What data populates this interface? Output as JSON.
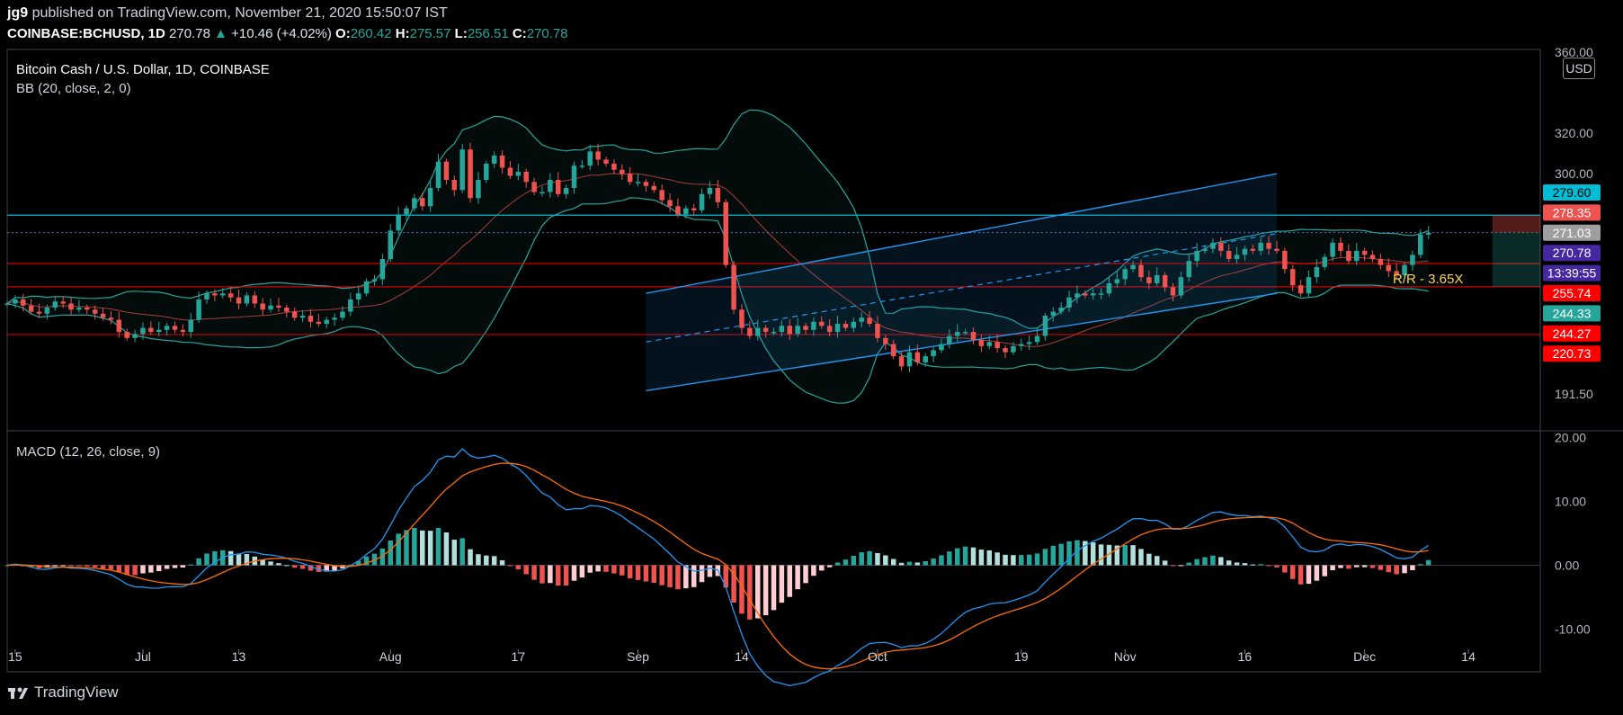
{
  "header": {
    "user": "jg9",
    "published": "published on TradingView.com, November 21, 2020 15:50:07 IST",
    "symbol": "COINBASE:BCHUSD, 1D",
    "last": "270.78",
    "change": "+10.46 (+4.02%)",
    "o_label": "O:",
    "o": "260.42",
    "h_label": "H:",
    "h": "275.57",
    "l_label": "L:",
    "l": "256.51",
    "c_label": "C:",
    "c": "270.78"
  },
  "legend": {
    "title": "Bitcoin Cash / U.S. Dollar, 1D, COINBASE",
    "bb": "BB (20, close, 2, 0)",
    "macd": "MACD (12, 26, close, 9)",
    "rr": "R/R - 3.65X",
    "currency": "USD"
  },
  "footer": {
    "brand": "TradingView"
  },
  "colors": {
    "up": "#26a69a",
    "down": "#ef5350",
    "bb": "#26a69a",
    "basis": "#ef5350",
    "channel": "#2196f3",
    "macd": "#2196f3",
    "signal": "#ff6d00",
    "resistance": "#00bcd4",
    "support": "#ff0000"
  },
  "chart_data": [
    {
      "type": "candlestick",
      "y_ticks": [
        "360.00",
        "320.00",
        "300.00",
        "191.50"
      ],
      "ylim": [
        175,
        360
      ],
      "x_ticks": [
        {
          "label": "15",
          "date": "2020-06-15"
        },
        {
          "label": "Jul",
          "date": "2020-07-01"
        },
        {
          "label": "13",
          "date": "2020-07-13"
        },
        {
          "label": "Aug",
          "date": "2020-08-01"
        },
        {
          "label": "17",
          "date": "2020-08-17"
        },
        {
          "label": "Sep",
          "date": "2020-09-01"
        },
        {
          "label": "14",
          "date": "2020-09-14"
        },
        {
          "label": "Oct",
          "date": "2020-10-01"
        },
        {
          "label": "19",
          "date": "2020-10-19"
        },
        {
          "label": "Nov",
          "date": "2020-11-01"
        },
        {
          "label": "16",
          "date": "2020-11-16"
        },
        {
          "label": "Dec",
          "date": "2020-12-01"
        },
        {
          "label": "14",
          "date": "2020-12-14"
        }
      ],
      "x_range": [
        "2020-06-14",
        "2020-12-23"
      ],
      "ohlc_start": "2020-06-14",
      "close": [
        236,
        238,
        235,
        232,
        231,
        234,
        237,
        236,
        233,
        234,
        233,
        231,
        229,
        228,
        222,
        219,
        221,
        224,
        222,
        223,
        225,
        223,
        222,
        228,
        238,
        241,
        240,
        241,
        239,
        236,
        240,
        236,
        233,
        235,
        234,
        232,
        229,
        230,
        227,
        226,
        228,
        229,
        232,
        238,
        241,
        247,
        248,
        258,
        272,
        280,
        283,
        288,
        284,
        293,
        306,
        297,
        292,
        312,
        288,
        297,
        305,
        309,
        303,
        299,
        301,
        296,
        291,
        291,
        297,
        290,
        293,
        304,
        304,
        311,
        307,
        305,
        302,
        300,
        296,
        296,
        294,
        292,
        287,
        284,
        280,
        283,
        282,
        290,
        293,
        286,
        255,
        233,
        224,
        220,
        224,
        222,
        222,
        225,
        221,
        225,
        223,
        227,
        225,
        222,
        226,
        224,
        227,
        229,
        226,
        219,
        216,
        210,
        205,
        212,
        207,
        210,
        213,
        216,
        220,
        222,
        222,
        218,
        215,
        217,
        214,
        212,
        215,
        216,
        217,
        220,
        230,
        232,
        234,
        239,
        241,
        240,
        241,
        241,
        246,
        248,
        253,
        255,
        249,
        246,
        250,
        244,
        240,
        249,
        257,
        262,
        263,
        266,
        262,
        258,
        260,
        263,
        262,
        266,
        263,
        262,
        253,
        245,
        241,
        249,
        254,
        259,
        266,
        262,
        257,
        262,
        260,
        258,
        255,
        252,
        250,
        255,
        260,
        270,
        271
      ],
      "channel": {
        "lower": [
          {
            "date": "2020-09-02",
            "y": 193
          },
          {
            "date": "2020-11-20",
            "y": 241
          }
        ],
        "upper": [
          {
            "date": "2020-09-02",
            "y": 241
          },
          {
            "date": "2020-11-20",
            "y": 300
          }
        ]
      },
      "levels": [
        279.6,
        278.35,
        271.03,
        270.78,
        255.74,
        244.33,
        244.27,
        220.73
      ],
      "hlines": {
        "resistance": 279.6,
        "support": [
          255.74,
          244.27,
          220.73
        ]
      },
      "price_labels": [
        {
          "value": "279.60",
          "bg": "#00bcd4",
          "fg": "#000"
        },
        {
          "value": "278.35",
          "bg": "#ef5350",
          "fg": "#fff"
        },
        {
          "value": "271.03",
          "bg": "#9e9e9e",
          "fg": "#fff"
        },
        {
          "value": "270.78",
          "bg": "#4527a0",
          "fg": "#fff"
        },
        {
          "value": "13:39:55",
          "bg": "#4527a0",
          "fg": "#fff"
        },
        {
          "value": "255.74",
          "bg": "#ff0000",
          "fg": "#fff"
        },
        {
          "value": "244.33",
          "bg": "#26a69a",
          "fg": "#fff"
        },
        {
          "value": "244.27",
          "bg": "#ff0000",
          "fg": "#fff"
        },
        {
          "value": "220.73",
          "bg": "#ff0000",
          "fg": "#fff"
        }
      ]
    },
    {
      "type": "macd",
      "y_ticks": [
        "20.00",
        "10.00",
        "0.00",
        "-10.00"
      ],
      "ylim": [
        -16,
        20.5
      ]
    }
  ]
}
